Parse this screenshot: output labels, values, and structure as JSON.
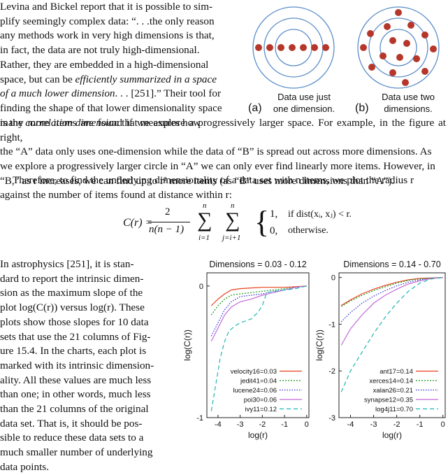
{
  "para1_lines": [
    "Levina and Bickel report that it is possible to sim-",
    "plify seemingly complex data: “. . .the only reason",
    "any methods work in very high dimensions is that,",
    "in fact, the data are not truly high-dimensional.",
    "Rather, they are embedded in a high-dimensional",
    "space, but can be ",
    "efficiently summarized in a space",
    "of a much lower dimension",
    ". . . [251].” Their tool for",
    "finding the shape of that lower dimensionality space",
    "is the ",
    "correlation dimension",
    " that measures how"
  ],
  "para1_full_lines": [
    "many more items are found if we explore a progressively larger space. For example, in the figure at right,",
    "the “A” data only uses one-dimension while the data of “B” is spread out across more dimensions. As",
    "we explore a progressively larger circle in “A” we can only ever find linearly more items. However, in",
    "“B,” as r increases, we can find up to r² more items (as “B” uses more dimensions than “A”)."
  ],
  "para2_lines": [
    "Therefore, to find the underlying dimensionality of a data set with n items, we plot the radius r",
    "against the number of items found at distance within r:"
  ],
  "equation": {
    "lhs": "C(r) =",
    "numerator": "2",
    "denominator": "n(n − 1)",
    "sum1_top": "n",
    "sum1_bottom": "i=1",
    "sum2_top": "n",
    "sum2_bottom": "j=i+1",
    "case1_value": "1,",
    "case1_cond": "if dist(xᵢ, xⱼ) < r.",
    "case2_value": "0,",
    "case2_cond": "otherwise."
  },
  "para3_lines": [
    "In astrophysics [251], it is stan-",
    "dard to report the intrinsic dimen-",
    "sion as the maximum slope of the",
    "plot log(C(r)) versus log(r). These",
    "plots show those slopes for 10 data",
    "sets that use the 21 columns of Fig-",
    "ure 15.4. In the charts, each plot is",
    "marked with its intrinsic dimension-",
    "ality. All these values are much less",
    "than one; in other words, much less",
    "than the 21 columns of the original",
    "data set. That is, it should be pos-",
    "sible to reduce these data sets to a",
    "much smaller number of underlying",
    "data points."
  ],
  "figure": {
    "label_a": "(a)",
    "label_b": "(b)",
    "caption_a": [
      "Data use just",
      "one dimension."
    ],
    "caption_b": [
      "Data use two",
      "dimensions."
    ]
  },
  "chart_data": [
    {
      "type": "line",
      "title": "Dimensions = 0.03 - 0.12",
      "xlabel": "log(r)",
      "ylabel": "log(C(r))",
      "xlim": [
        -4.5,
        0.1
      ],
      "ylim": [
        -1,
        0.1
      ],
      "xticks": [
        "-4",
        "-3",
        "-2",
        "-1",
        "0"
      ],
      "yticks": [
        "0",
        "-1"
      ],
      "series": [
        {
          "name": "velocity16=0.03",
          "color": "#e8431f",
          "dash": "solid",
          "x": [
            -4.3,
            -4.0,
            -3.7,
            -3.4,
            -3.0,
            -2.5,
            -2.0,
            -1.5,
            -1.0,
            -0.5,
            0.0
          ],
          "y": [
            -0.15,
            -0.1,
            -0.06,
            -0.03,
            -0.02,
            -0.015,
            -0.01,
            -0.01,
            -0.01,
            -0.005,
            0.0
          ]
        },
        {
          "name": "jedit41=0.04",
          "color": "#1a9a1a",
          "dash": "2,2",
          "x": [
            -4.3,
            -4.0,
            -3.7,
            -3.4,
            -3.0,
            -2.5,
            -2.0,
            -1.5,
            -1.0,
            -0.5,
            0.0
          ],
          "y": [
            -0.22,
            -0.15,
            -0.1,
            -0.07,
            -0.06,
            -0.05,
            -0.04,
            -0.03,
            -0.02,
            -0.01,
            0.0
          ]
        },
        {
          "name": "lucene24=0.06",
          "color": "#2b2bd6",
          "dash": "1.5,2",
          "x": [
            -4.3,
            -4.0,
            -3.7,
            -3.4,
            -3.0,
            -2.5,
            -2.0,
            -1.5,
            -1.0,
            -0.5,
            0.0
          ],
          "y": [
            -0.38,
            -0.28,
            -0.18,
            -0.12,
            -0.08,
            -0.07,
            -0.06,
            -0.04,
            -0.03,
            -0.01,
            0.0
          ]
        },
        {
          "name": "poi30=0.06",
          "color": "#c36ad6",
          "dash": "solid",
          "x": [
            -4.3,
            -4.0,
            -3.7,
            -3.4,
            -3.0,
            -2.5,
            -2.0,
            -1.5,
            -1.0,
            -0.5,
            0.0
          ],
          "y": [
            -0.42,
            -0.32,
            -0.22,
            -0.16,
            -0.12,
            -0.1,
            -0.07,
            -0.05,
            -0.03,
            -0.01,
            0.0
          ]
        },
        {
          "name": "ivy11=0.12",
          "color": "#1fb5b5",
          "dash": "6,4",
          "x": [
            -4.3,
            -4.1,
            -3.9,
            -3.7,
            -3.5,
            -3.2,
            -3.0,
            -2.5,
            -2.2,
            -2.0,
            -1.8,
            -1.0,
            -0.5,
            0.0
          ],
          "y": [
            -0.95,
            -0.75,
            -0.55,
            -0.42,
            -0.34,
            -0.3,
            -0.28,
            -0.25,
            -0.2,
            -0.15,
            -0.05,
            -0.03,
            -0.02,
            0.0
          ]
        }
      ]
    },
    {
      "type": "line",
      "title": "Dimensions = 0.14 - 0.70",
      "xlabel": "log(r)",
      "ylabel": "log(C(r))",
      "xlim": [
        -4.5,
        0.1
      ],
      "ylim": [
        -3,
        0.1
      ],
      "xticks": [
        "-4",
        "-3",
        "-2",
        "-1",
        "0"
      ],
      "yticks": [
        "0",
        "-1",
        "-2",
        "-3"
      ],
      "series": [
        {
          "name": "ant17=0.14",
          "color": "#e8431f",
          "dash": "solid",
          "x": [
            -4.4,
            -4.0,
            -3.5,
            -3.0,
            -2.5,
            -2.0,
            -1.5,
            -1.0,
            -0.5,
            0.0
          ],
          "y": [
            -0.6,
            -0.48,
            -0.35,
            -0.25,
            -0.17,
            -0.1,
            -0.05,
            -0.02,
            -0.01,
            0.0
          ]
        },
        {
          "name": "xerces14=0.14",
          "color": "#1a9a1a",
          "dash": "2,2",
          "x": [
            -4.4,
            -4.0,
            -3.5,
            -3.0,
            -2.5,
            -2.0,
            -1.5,
            -1.0,
            -0.5,
            0.0
          ],
          "y": [
            -0.62,
            -0.5,
            -0.38,
            -0.28,
            -0.2,
            -0.12,
            -0.06,
            -0.03,
            -0.01,
            0.0
          ]
        },
        {
          "name": "xalan26=0.21",
          "color": "#2b2bd6",
          "dash": "1.5,2",
          "x": [
            -4.4,
            -4.0,
            -3.5,
            -3.0,
            -2.5,
            -2.0,
            -1.5,
            -1.0,
            -0.5,
            0.0
          ],
          "y": [
            -0.95,
            -0.75,
            -0.55,
            -0.4,
            -0.28,
            -0.18,
            -0.1,
            -0.05,
            -0.02,
            0.0
          ]
        },
        {
          "name": "synapse12=0.35",
          "color": "#c36ad6",
          "dash": "solid",
          "x": [
            -4.4,
            -4.0,
            -3.5,
            -3.0,
            -2.5,
            -2.0,
            -1.5,
            -1.0,
            -0.5,
            0.0
          ],
          "y": [
            -1.45,
            -1.1,
            -0.8,
            -0.55,
            -0.38,
            -0.25,
            -0.14,
            -0.07,
            -0.02,
            0.0
          ]
        },
        {
          "name": "log4j11=0.70",
          "color": "#1fb5b5",
          "dash": "6,4",
          "x": [
            -4.4,
            -4.0,
            -3.5,
            -3.0,
            -2.5,
            -2.0,
            -1.5,
            -1.0,
            -0.5,
            0.0
          ],
          "y": [
            -2.45,
            -2.0,
            -1.6,
            -1.2,
            -0.85,
            -0.55,
            -0.3,
            -0.12,
            -0.03,
            0.0
          ]
        }
      ]
    }
  ]
}
